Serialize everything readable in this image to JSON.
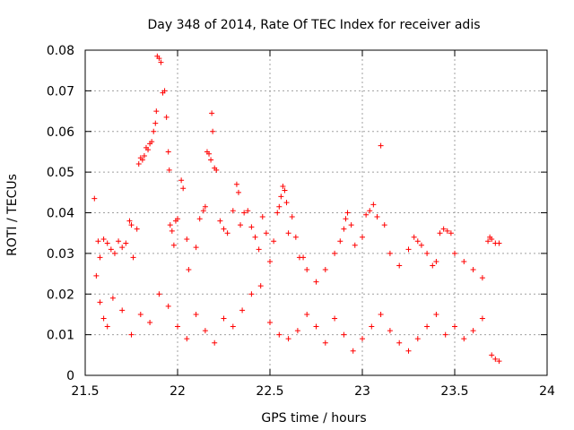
{
  "chart_data": {
    "type": "scatter",
    "title": "Day 348 of 2014, Rate Of TEC Index for receiver adis",
    "xlabel": "GPS time / hours",
    "ylabel": "ROTI / TECUs",
    "xlim": [
      21.5,
      24
    ],
    "ylim": [
      0,
      0.08
    ],
    "x_ticks": [
      21.5,
      22,
      22.5,
      23,
      23.5,
      24
    ],
    "x_tick_labels": [
      "21.5",
      "22",
      "22.5",
      "23",
      "23.5",
      "24"
    ],
    "y_ticks": [
      0,
      0.01,
      0.02,
      0.03,
      0.04,
      0.05,
      0.06,
      0.07,
      0.08
    ],
    "y_tick_labels": [
      "0",
      "0.01",
      "0.02",
      "0.03",
      "0.04",
      "0.05",
      "0.06",
      "0.07",
      "0.08"
    ],
    "grid": true,
    "marker": "+",
    "color": "#ff0000",
    "series": [
      {
        "name": "ROTI",
        "points": [
          [
            21.55,
            0.0435
          ],
          [
            21.56,
            0.0245
          ],
          [
            21.57,
            0.033
          ],
          [
            21.58,
            0.029
          ],
          [
            21.6,
            0.0335
          ],
          [
            21.62,
            0.0325
          ],
          [
            21.64,
            0.031
          ],
          [
            21.66,
            0.03
          ],
          [
            21.68,
            0.033
          ],
          [
            21.7,
            0.0315
          ],
          [
            21.72,
            0.0325
          ],
          [
            21.74,
            0.038
          ],
          [
            21.75,
            0.037
          ],
          [
            21.76,
            0.029
          ],
          [
            21.78,
            0.036
          ],
          [
            21.79,
            0.052
          ],
          [
            21.8,
            0.0535
          ],
          [
            21.81,
            0.053
          ],
          [
            21.82,
            0.054
          ],
          [
            21.83,
            0.056
          ],
          [
            21.84,
            0.0555
          ],
          [
            21.85,
            0.057
          ],
          [
            21.86,
            0.0575
          ],
          [
            21.87,
            0.06
          ],
          [
            21.88,
            0.062
          ],
          [
            21.885,
            0.065
          ],
          [
            21.89,
            0.0785
          ],
          [
            21.9,
            0.078
          ],
          [
            21.91,
            0.077
          ],
          [
            21.92,
            0.0695
          ],
          [
            21.93,
            0.07
          ],
          [
            21.94,
            0.0635
          ],
          [
            21.95,
            0.055
          ],
          [
            21.955,
            0.0505
          ],
          [
            21.96,
            0.037
          ],
          [
            21.97,
            0.0355
          ],
          [
            21.98,
            0.032
          ],
          [
            21.99,
            0.038
          ],
          [
            22.0,
            0.0385
          ],
          [
            22.02,
            0.048
          ],
          [
            22.03,
            0.046
          ],
          [
            22.05,
            0.0335
          ],
          [
            22.06,
            0.026
          ],
          [
            22.1,
            0.0315
          ],
          [
            22.12,
            0.0385
          ],
          [
            22.14,
            0.0405
          ],
          [
            22.15,
            0.0415
          ],
          [
            22.16,
            0.055
          ],
          [
            22.17,
            0.0545
          ],
          [
            22.18,
            0.053
          ],
          [
            22.185,
            0.0645
          ],
          [
            22.19,
            0.06
          ],
          [
            22.2,
            0.051
          ],
          [
            22.21,
            0.0505
          ],
          [
            22.23,
            0.038
          ],
          [
            22.25,
            0.036
          ],
          [
            22.27,
            0.035
          ],
          [
            22.3,
            0.0405
          ],
          [
            22.32,
            0.047
          ],
          [
            22.33,
            0.045
          ],
          [
            22.34,
            0.037
          ],
          [
            22.36,
            0.04
          ],
          [
            22.38,
            0.0405
          ],
          [
            22.4,
            0.0365
          ],
          [
            22.42,
            0.034
          ],
          [
            22.44,
            0.031
          ],
          [
            22.46,
            0.039
          ],
          [
            22.48,
            0.035
          ],
          [
            22.5,
            0.028
          ],
          [
            22.52,
            0.033
          ],
          [
            22.54,
            0.04
          ],
          [
            22.55,
            0.0415
          ],
          [
            22.56,
            0.044
          ],
          [
            22.57,
            0.0465
          ],
          [
            22.58,
            0.0455
          ],
          [
            22.59,
            0.0425
          ],
          [
            22.6,
            0.035
          ],
          [
            22.62,
            0.039
          ],
          [
            22.64,
            0.034
          ],
          [
            22.66,
            0.029
          ],
          [
            22.68,
            0.029
          ],
          [
            22.7,
            0.026
          ],
          [
            22.75,
            0.023
          ],
          [
            22.8,
            0.026
          ],
          [
            22.85,
            0.03
          ],
          [
            22.88,
            0.033
          ],
          [
            22.9,
            0.036
          ],
          [
            22.91,
            0.0385
          ],
          [
            22.92,
            0.04
          ],
          [
            22.94,
            0.037
          ],
          [
            22.96,
            0.032
          ],
          [
            23.0,
            0.034
          ],
          [
            23.02,
            0.0395
          ],
          [
            23.04,
            0.0405
          ],
          [
            23.06,
            0.042
          ],
          [
            23.08,
            0.039
          ],
          [
            23.1,
            0.0565
          ],
          [
            23.12,
            0.037
          ],
          [
            23.15,
            0.03
          ],
          [
            23.2,
            0.027
          ],
          [
            23.25,
            0.031
          ],
          [
            23.28,
            0.034
          ],
          [
            23.3,
            0.033
          ],
          [
            23.32,
            0.032
          ],
          [
            23.35,
            0.03
          ],
          [
            23.38,
            0.027
          ],
          [
            23.4,
            0.028
          ],
          [
            23.42,
            0.035
          ],
          [
            23.44,
            0.036
          ],
          [
            23.46,
            0.0355
          ],
          [
            23.48,
            0.035
          ],
          [
            23.5,
            0.03
          ],
          [
            23.55,
            0.028
          ],
          [
            23.6,
            0.026
          ],
          [
            23.65,
            0.024
          ],
          [
            23.68,
            0.033
          ],
          [
            23.69,
            0.034
          ],
          [
            23.7,
            0.0335
          ],
          [
            23.72,
            0.0325
          ],
          [
            23.74,
            0.0325
          ],
          [
            21.58,
            0.018
          ],
          [
            21.6,
            0.014
          ],
          [
            21.62,
            0.012
          ],
          [
            21.65,
            0.019
          ],
          [
            21.7,
            0.016
          ],
          [
            21.75,
            0.01
          ],
          [
            21.8,
            0.015
          ],
          [
            21.85,
            0.013
          ],
          [
            21.9,
            0.02
          ],
          [
            21.95,
            0.017
          ],
          [
            22.0,
            0.012
          ],
          [
            22.05,
            0.009
          ],
          [
            22.1,
            0.015
          ],
          [
            22.15,
            0.011
          ],
          [
            22.2,
            0.008
          ],
          [
            22.25,
            0.014
          ],
          [
            22.3,
            0.012
          ],
          [
            22.35,
            0.016
          ],
          [
            22.4,
            0.02
          ],
          [
            22.45,
            0.022
          ],
          [
            22.5,
            0.013
          ],
          [
            22.55,
            0.01
          ],
          [
            22.6,
            0.009
          ],
          [
            22.65,
            0.011
          ],
          [
            22.7,
            0.015
          ],
          [
            22.75,
            0.012
          ],
          [
            22.8,
            0.008
          ],
          [
            22.85,
            0.014
          ],
          [
            22.9,
            0.01
          ],
          [
            22.95,
            0.006
          ],
          [
            23.0,
            0.009
          ],
          [
            23.05,
            0.012
          ],
          [
            23.1,
            0.015
          ],
          [
            23.15,
            0.011
          ],
          [
            23.2,
            0.008
          ],
          [
            23.25,
            0.006
          ],
          [
            23.3,
            0.009
          ],
          [
            23.35,
            0.012
          ],
          [
            23.4,
            0.015
          ],
          [
            23.45,
            0.01
          ],
          [
            23.5,
            0.012
          ],
          [
            23.55,
            0.009
          ],
          [
            23.6,
            0.011
          ],
          [
            23.65,
            0.014
          ],
          [
            23.7,
            0.005
          ],
          [
            23.72,
            0.004
          ],
          [
            23.74,
            0.0035
          ]
        ]
      }
    ]
  }
}
